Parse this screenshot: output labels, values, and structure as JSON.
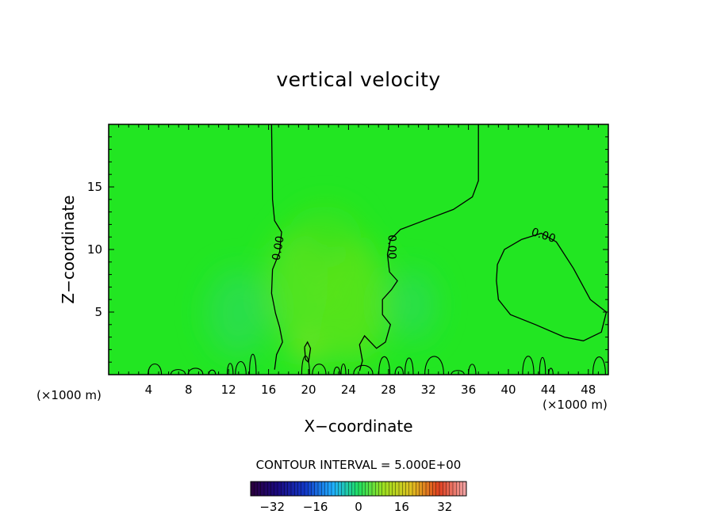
{
  "chart_data": {
    "type": "heatmap",
    "title": "vertical velocity",
    "xlabel": "X−coordinate",
    "ylabel": "Z−coordinate",
    "x_unit_label": "(×1000 m)",
    "xlim": [
      0,
      50
    ],
    "ylim": [
      0,
      20
    ],
    "x_ticks": [
      4,
      8,
      12,
      16,
      20,
      24,
      28,
      32,
      36,
      40,
      44,
      48
    ],
    "y_ticks": [
      5,
      10,
      15
    ],
    "x_tick_labels": [
      "4",
      "8",
      "12",
      "16",
      "20",
      "24",
      "28",
      "32",
      "36",
      "40",
      "44",
      "48"
    ],
    "y_tick_labels": [
      "5",
      "10",
      "15"
    ],
    "contour_interval_text": "CONTOUR INTERVAL = 5.000E+00",
    "contour_label": "0.00",
    "colorbar": {
      "min": -40,
      "max": 40,
      "tick_values": [
        -32,
        -16,
        0,
        16,
        32
      ],
      "tick_labels": [
        "−32",
        "−16",
        "0",
        "16",
        "32"
      ]
    },
    "zero_contours": [
      {
        "name": "left-boundary",
        "points": [
          [
            16.3,
            20
          ],
          [
            16.4,
            14
          ],
          [
            16.6,
            12.3
          ],
          [
            17.3,
            11.4
          ],
          [
            17.1,
            9.8
          ],
          [
            16.4,
            8.4
          ],
          [
            16.3,
            6.5
          ],
          [
            16.7,
            4.9
          ],
          [
            17.1,
            3.8
          ],
          [
            17.4,
            2.6
          ],
          [
            16.8,
            1.6
          ],
          [
            16.6,
            0.4
          ]
        ]
      },
      {
        "name": "right-boundary",
        "points": [
          [
            37.0,
            20
          ],
          [
            37.0,
            15.5
          ],
          [
            36.4,
            14.2
          ],
          [
            34.5,
            13.2
          ],
          [
            31.5,
            12.3
          ],
          [
            29.2,
            11.6
          ],
          [
            28.2,
            10.8
          ],
          [
            27.9,
            9.6
          ],
          [
            28.1,
            8.2
          ],
          [
            28.9,
            7.5
          ],
          [
            28.3,
            6.8
          ],
          [
            27.4,
            6.0
          ],
          [
            27.4,
            4.8
          ],
          [
            28.2,
            4.0
          ],
          [
            27.7,
            2.6
          ],
          [
            26.8,
            2.1
          ],
          [
            25.6,
            3.1
          ],
          [
            25.1,
            2.4
          ],
          [
            25.4,
            1.1
          ],
          [
            25.1,
            0.3
          ]
        ]
      },
      {
        "name": "closed-right",
        "points": [
          [
            41.3,
            10.8
          ],
          [
            43.3,
            11.3
          ],
          [
            44.8,
            10.6
          ],
          [
            46.5,
            8.5
          ],
          [
            48.2,
            6.0
          ],
          [
            49.8,
            5.0
          ],
          [
            49.3,
            3.4
          ],
          [
            47.5,
            2.7
          ],
          [
            45.6,
            3.0
          ],
          [
            42.7,
            4.0
          ],
          [
            40.2,
            4.8
          ],
          [
            39.0,
            6.0
          ],
          [
            38.8,
            7.5
          ],
          [
            38.9,
            8.8
          ],
          [
            39.6,
            10.0
          ],
          [
            41.3,
            10.8
          ]
        ]
      },
      {
        "name": "small-loop",
        "points": [
          [
            19.6,
            2.2
          ],
          [
            19.9,
            2.6
          ],
          [
            20.2,
            2.1
          ],
          [
            20.0,
            1.0
          ],
          [
            19.7,
            1.2
          ],
          [
            19.6,
            2.2
          ]
        ]
      }
    ],
    "ground_contours_note": "many small zero contours near the ground (z < 2)",
    "grid": false,
    "legend": "none"
  }
}
